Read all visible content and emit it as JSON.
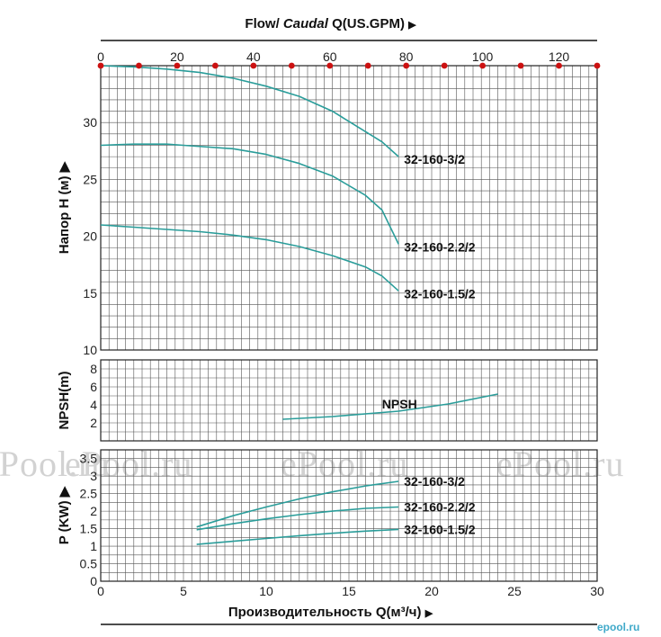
{
  "titles": {
    "top_prefix": "Flow/ ",
    "top_italic": "Caudal",
    "top_suffix": " Q(US.GPM)",
    "bottom": "Производительность Q(м³/ч)",
    "arrow": "▶"
  },
  "watermark": {
    "text": "ePool.ru",
    "small": "epool.ru"
  },
  "chart_data": [
    {
      "type": "line",
      "title": "",
      "ylabel": "Напор H (м)",
      "xlabel": "Производительность Q(м³/ч)",
      "xlim": [
        0,
        30
      ],
      "ylim": [
        10,
        35
      ],
      "yticks": [
        10,
        15,
        20,
        25,
        30
      ],
      "series": [
        {
          "name": "32-160-3/2",
          "x": [
            0,
            2,
            4,
            6,
            8,
            10,
            12,
            14,
            16,
            17,
            18
          ],
          "y": [
            35,
            34.9,
            34.7,
            34.4,
            33.9,
            33.2,
            32.3,
            31.0,
            29.2,
            28.3,
            27.0
          ]
        },
        {
          "name": "32-160-2.2/2",
          "x": [
            0,
            2,
            4,
            5,
            8,
            10,
            12,
            14,
            16,
            17,
            18
          ],
          "y": [
            28.0,
            28.1,
            28.1,
            28.0,
            27.7,
            27.2,
            26.4,
            25.3,
            23.6,
            22.3,
            19.3
          ]
        },
        {
          "name": "32-160-1.5/2",
          "x": [
            0,
            2,
            4,
            6,
            8,
            10,
            12,
            14,
            16,
            17,
            18
          ],
          "y": [
            21.0,
            20.8,
            20.6,
            20.4,
            20.1,
            19.7,
            19.1,
            18.3,
            17.3,
            16.5,
            15.2
          ]
        }
      ]
    },
    {
      "type": "line",
      "ylabel": "NPSH(m)",
      "xlim": [
        0,
        30
      ],
      "ylim": [
        0,
        9
      ],
      "yticks": [
        2,
        4,
        6,
        8
      ],
      "series": [
        {
          "name": "NPSH",
          "x": [
            11,
            14,
            18,
            21,
            24
          ],
          "y": [
            2.4,
            2.7,
            3.3,
            4.1,
            5.2
          ]
        }
      ]
    },
    {
      "type": "line",
      "ylabel": "P (KW)",
      "xlim": [
        0,
        30
      ],
      "ylim": [
        0,
        3.75
      ],
      "yticks": [
        0,
        0.5,
        1,
        1.5,
        2,
        2.5,
        3,
        3.5
      ],
      "xticks": [
        0,
        5,
        10,
        15,
        20,
        25,
        30
      ],
      "series": [
        {
          "name": "32-160-3/2",
          "x": [
            5.8,
            8,
            10,
            12,
            14,
            16,
            18
          ],
          "y": [
            1.55,
            1.87,
            2.12,
            2.35,
            2.55,
            2.72,
            2.85
          ]
        },
        {
          "name": "32-160-2.2/2",
          "x": [
            5.8,
            8,
            10,
            12,
            14,
            16,
            18
          ],
          "y": [
            1.47,
            1.64,
            1.78,
            1.9,
            2.0,
            2.08,
            2.12
          ]
        },
        {
          "name": "32-160-1.5/2",
          "x": [
            5.8,
            8,
            10,
            12,
            14,
            16,
            18
          ],
          "y": [
            1.05,
            1.14,
            1.22,
            1.3,
            1.37,
            1.43,
            1.48
          ]
        }
      ]
    }
  ],
  "top_axis": {
    "xlim": [
      0,
      130
    ],
    "ticks": [
      0,
      20,
      40,
      60,
      80,
      100,
      120
    ],
    "dots": [
      0,
      10,
      20,
      30,
      40,
      50,
      60,
      70,
      80,
      90,
      100,
      110,
      120,
      130
    ]
  },
  "colors": {
    "curve": "#2a9d9a",
    "grid": "#555555",
    "dot": "#cc1111"
  }
}
